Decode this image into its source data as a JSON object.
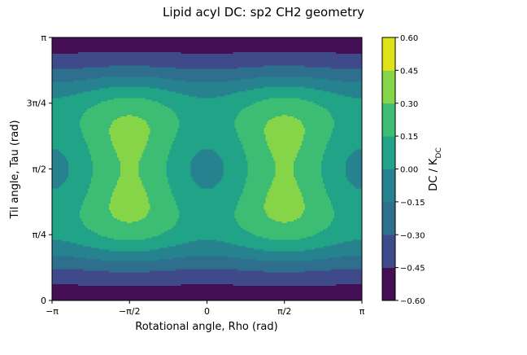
{
  "chart_data": {
    "type": "heatmap",
    "subtype": "filled-contour",
    "title": "Lipid acyl DC: sp2 CH2 geometry",
    "xlabel": "Rotational angle, Rho (rad)",
    "ylabel": "Til angle, Tau (rad)",
    "xlim": [
      -3.14159,
      3.14159
    ],
    "ylim": [
      0,
      3.14159
    ],
    "x_ticks": [
      {
        "value": -3.14159,
        "label": "−π"
      },
      {
        "value": -1.5708,
        "label": "−π/2"
      },
      {
        "value": 0,
        "label": "0"
      },
      {
        "value": 1.5708,
        "label": "π/2"
      },
      {
        "value": 3.14159,
        "label": "π"
      }
    ],
    "y_ticks": [
      {
        "value": 0,
        "label": "0"
      },
      {
        "value": 0.7854,
        "label": "π/4"
      },
      {
        "value": 1.5708,
        "label": "π/2"
      },
      {
        "value": 2.3562,
        "label": "3π/4"
      },
      {
        "value": 3.14159,
        "label": "π"
      }
    ],
    "colorbar": {
      "label": "DC / K_DC",
      "levels": [
        -0.6,
        -0.45,
        -0.3,
        -0.15,
        0.0,
        0.15,
        0.3,
        0.45,
        0.6
      ],
      "tick_labels": [
        "−0.60",
        "−0.45",
        "−0.30",
        "−0.15",
        "0.00",
        "0.15",
        "0.30",
        "0.45",
        "0.60"
      ],
      "colors": [
        "#440f55",
        "#3e4a89",
        "#2e6f8e",
        "#26828e",
        "#20a386",
        "#3dbc74",
        "#86d549",
        "#dde318"
      ]
    },
    "features": [
      {
        "kind": "minimum",
        "x": 0.0,
        "y": 2.71,
        "band": "-0.60 to -0.45"
      },
      {
        "kind": "minimum",
        "x": -3.14159,
        "y": 0.55,
        "band": "-0.60 to -0.45"
      },
      {
        "kind": "minimum",
        "x": 3.14159,
        "y": 0.55,
        "band": "-0.60 to -0.45"
      },
      {
        "kind": "maximum",
        "x": -1.5708,
        "y": 1.5708,
        "band": "0.45 to 0.60"
      },
      {
        "kind": "maximum",
        "x": 1.5708,
        "y": 1.5708,
        "band": "0.45 to 0.60"
      }
    ],
    "grid": false,
    "legend": "colorbar-right"
  }
}
